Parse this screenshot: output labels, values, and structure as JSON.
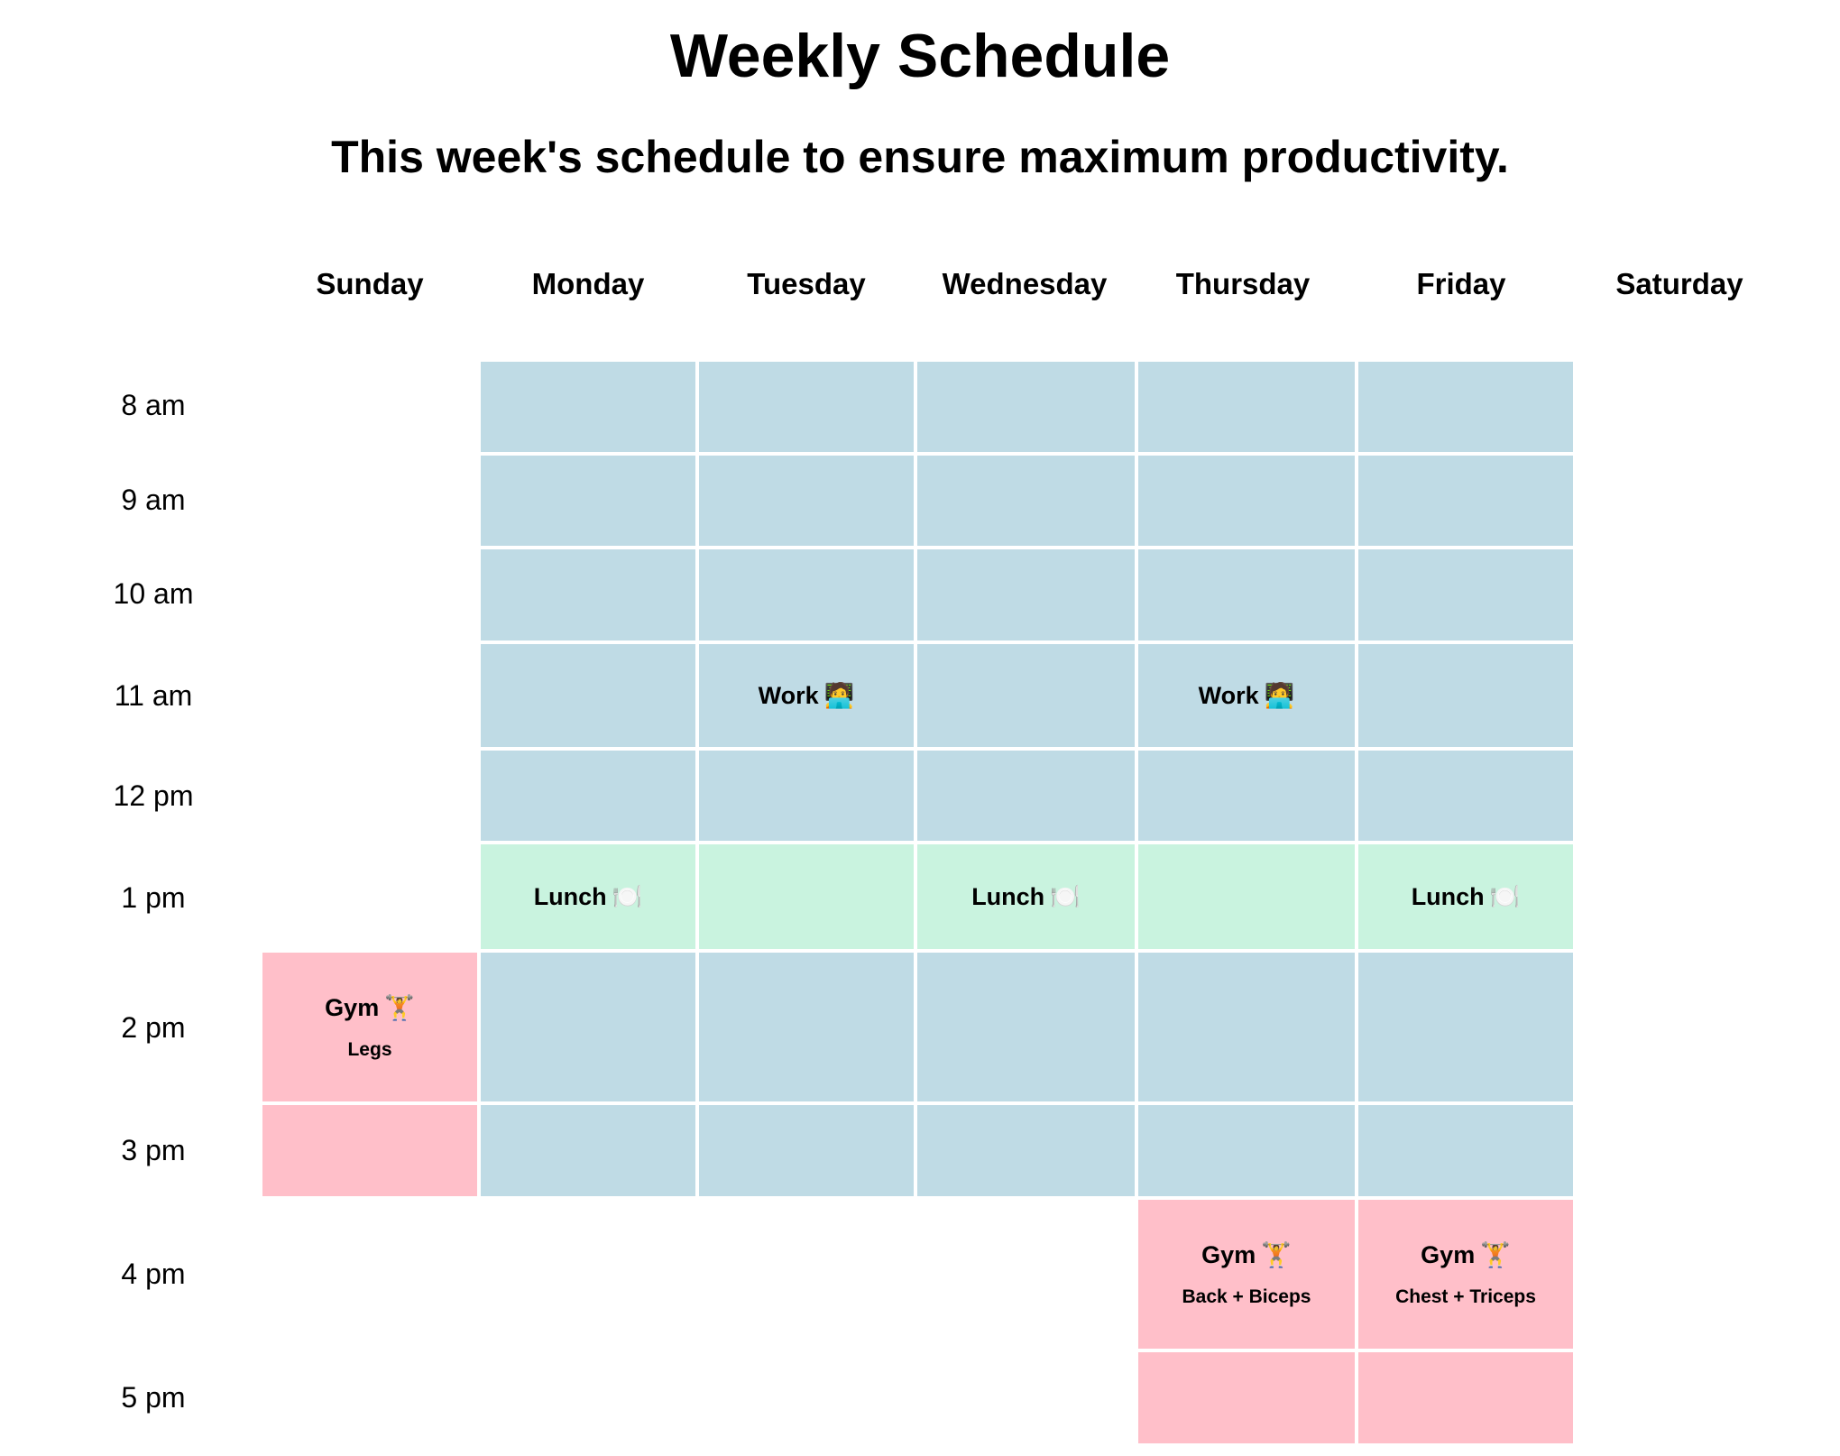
{
  "header": {
    "title": "Weekly Schedule",
    "subtitle": "This week's schedule to ensure maximum productivity."
  },
  "days": [
    "Sunday",
    "Monday",
    "Tuesday",
    "Wednesday",
    "Thursday",
    "Friday",
    "Saturday"
  ],
  "times": [
    "8 am",
    "9 am",
    "10 am",
    "11 am",
    "12 pm",
    "1 pm",
    "2 pm",
    "3 pm",
    "4 pm",
    "5 pm"
  ],
  "events": {
    "tuesday_work": {
      "title": "Work",
      "emoji": "🧑‍💻"
    },
    "thursday_work": {
      "title": "Work",
      "emoji": "🧑‍💻"
    },
    "monday_lunch": {
      "title": "Lunch",
      "emoji": "🍽️"
    },
    "wednesday_lunch": {
      "title": "Lunch",
      "emoji": "🍽️"
    },
    "friday_lunch": {
      "title": "Lunch",
      "emoji": "🍽️"
    },
    "sunday_gym": {
      "title": "Gym",
      "emoji": "🏋️",
      "detail": "Legs"
    },
    "thursday_gym": {
      "title": "Gym",
      "emoji": "🏋️",
      "detail": "Back + Biceps"
    },
    "friday_gym": {
      "title": "Gym",
      "emoji": "🏋️",
      "detail": "Chest + Triceps"
    }
  },
  "colors": {
    "work": "#bfdbe5",
    "lunch": "#c9f3df",
    "gym": "#ffbfc9"
  }
}
